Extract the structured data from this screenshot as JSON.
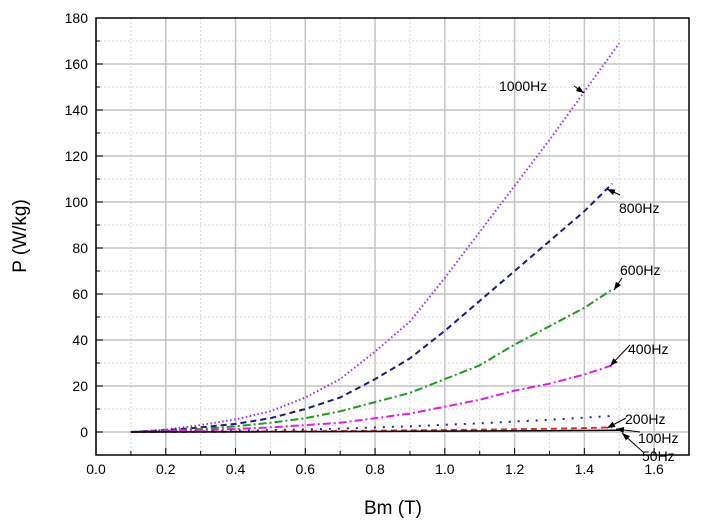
{
  "chart_data": {
    "type": "line",
    "title": "",
    "xlabel": "Bm (T)",
    "ylabel": "P (W/kg)",
    "xlim": [
      0.0,
      1.7
    ],
    "ylim": [
      -10,
      180
    ],
    "xticks": [
      "0.0",
      "0.2",
      "0.4",
      "0.6",
      "0.8",
      "1.0",
      "1.2",
      "1.4",
      "1.6"
    ],
    "yticks": [
      "0",
      "20",
      "40",
      "60",
      "80",
      "100",
      "120",
      "140",
      "160",
      "180"
    ],
    "grid": true,
    "series": [
      {
        "name": "1000Hz",
        "color": "#9933ee",
        "dash": "dotted",
        "x": [
          0.1,
          0.2,
          0.3,
          0.4,
          0.5,
          0.6,
          0.7,
          0.8,
          0.9,
          1.0,
          1.1,
          1.2,
          1.3,
          1.4,
          1.5
        ],
        "y": [
          0,
          1,
          3,
          5.5,
          9,
          15,
          23,
          35,
          48,
          67,
          87,
          107,
          127,
          148,
          169
        ]
      },
      {
        "name": "800Hz",
        "color": "#1c1c7a",
        "dash": "dashed",
        "x": [
          0.1,
          0.2,
          0.3,
          0.4,
          0.5,
          0.6,
          0.7,
          0.8,
          0.9,
          1.0,
          1.1,
          1.2,
          1.3,
          1.4,
          1.48
        ],
        "y": [
          0,
          0.8,
          2,
          3.5,
          6,
          10,
          15,
          23,
          32,
          44,
          57,
          70,
          83,
          96,
          108
        ]
      },
      {
        "name": "600Hz",
        "color": "#229922",
        "dash": "dashdot",
        "x": [
          0.1,
          0.2,
          0.3,
          0.4,
          0.5,
          0.6,
          0.7,
          0.8,
          0.9,
          1.0,
          1.1,
          1.2,
          1.3,
          1.4,
          1.48
        ],
        "y": [
          0,
          0.5,
          1.3,
          2.5,
          4,
          6,
          9,
          13,
          17,
          23,
          29,
          38,
          46,
          54,
          62
        ]
      },
      {
        "name": "400Hz",
        "color": "#e020e0",
        "dash": "dashdot",
        "x": [
          0.1,
          0.2,
          0.3,
          0.4,
          0.5,
          0.6,
          0.7,
          0.8,
          0.9,
          1.0,
          1.1,
          1.2,
          1.3,
          1.4,
          1.48
        ],
        "y": [
          0,
          0.3,
          0.8,
          1.3,
          2,
          3,
          4,
          6,
          8,
          11,
          14,
          18,
          21,
          25,
          29
        ]
      },
      {
        "name": "200Hz",
        "color": "#2424b0",
        "dash": "sparse-dotted",
        "x": [
          0.1,
          0.3,
          0.5,
          0.7,
          0.9,
          1.1,
          1.3,
          1.48
        ],
        "y": [
          0,
          0.3,
          0.8,
          1.5,
          2.5,
          3.8,
          5.3,
          7
        ]
      },
      {
        "name": "100Hz",
        "color": "#e03030",
        "dash": "dashed",
        "x": [
          0.1,
          0.3,
          0.5,
          0.7,
          0.9,
          1.1,
          1.3,
          1.48
        ],
        "y": [
          0,
          0.1,
          0.2,
          0.4,
          0.7,
          1,
          1.4,
          2
        ]
      },
      {
        "name": "50Hz",
        "color": "#000000",
        "dash": "solid",
        "x": [
          0.1,
          0.5,
          0.9,
          1.2,
          1.5
        ],
        "y": [
          0,
          0.1,
          0.3,
          0.5,
          0.8
        ]
      }
    ]
  }
}
